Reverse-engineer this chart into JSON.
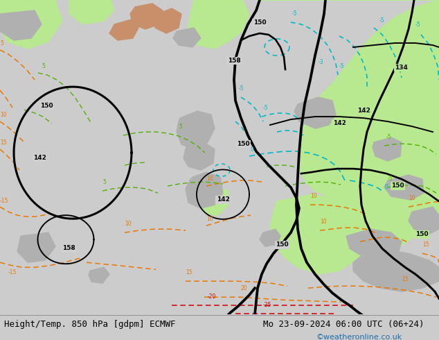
{
  "title_left": "Height/Temp. 850 hPa [gdpm] ECMWF",
  "title_right": "Mo 23-09-2024 06:00 UTC (06+24)",
  "credit": "©weatheronline.co.uk",
  "title_font_size": 9,
  "credit_color": "#1a6faf",
  "figsize": [
    6.34,
    4.9
  ],
  "dpi": 100,
  "sea_color": "#d8d8d8",
  "land_gray": "#b8b8b8",
  "land_green": "#b8e890",
  "black_lw": 2.2,
  "thin_lw": 1.1
}
